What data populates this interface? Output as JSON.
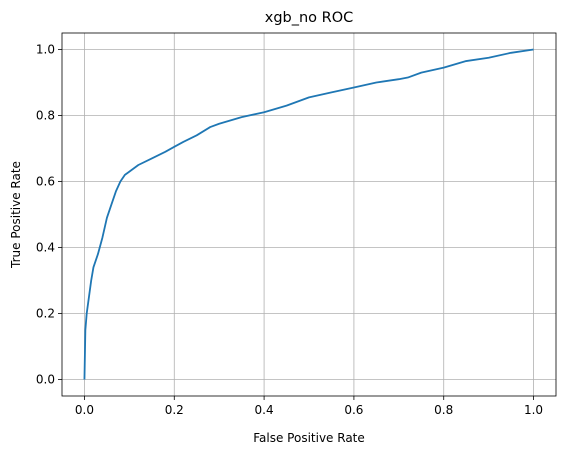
{
  "chart_data": {
    "type": "line",
    "title": "xgb_no ROC",
    "xlabel": "False Positive Rate",
    "ylabel": "True Positive Rate",
    "xlim": [
      -0.05,
      1.05
    ],
    "ylim": [
      -0.05,
      1.05
    ],
    "xticks": [
      0.0,
      0.2,
      0.4,
      0.6,
      0.8,
      1.0
    ],
    "yticks": [
      0.0,
      0.2,
      0.4,
      0.6,
      0.8,
      1.0
    ],
    "xtick_labels": [
      "0.0",
      "0.2",
      "0.4",
      "0.6",
      "0.8",
      "1.0"
    ],
    "ytick_labels": [
      "0.0",
      "0.2",
      "0.4",
      "0.6",
      "0.8",
      "1.0"
    ],
    "grid": true,
    "line_color": "#1f77b4",
    "series": [
      {
        "x": [
          0.0,
          0.002,
          0.005,
          0.01,
          0.015,
          0.02,
          0.03,
          0.04,
          0.05,
          0.06,
          0.07,
          0.08,
          0.09,
          0.1,
          0.12,
          0.15,
          0.18,
          0.2,
          0.22,
          0.25,
          0.28,
          0.3,
          0.35,
          0.4,
          0.45,
          0.5,
          0.55,
          0.6,
          0.65,
          0.7,
          0.72,
          0.75,
          0.8,
          0.85,
          0.9,
          0.95,
          1.0
        ],
        "y": [
          0.0,
          0.15,
          0.2,
          0.25,
          0.3,
          0.34,
          0.38,
          0.43,
          0.49,
          0.53,
          0.57,
          0.6,
          0.62,
          0.63,
          0.65,
          0.67,
          0.69,
          0.705,
          0.72,
          0.74,
          0.765,
          0.775,
          0.795,
          0.81,
          0.83,
          0.855,
          0.87,
          0.885,
          0.9,
          0.91,
          0.915,
          0.93,
          0.945,
          0.965,
          0.975,
          0.99,
          1.0
        ]
      }
    ]
  }
}
